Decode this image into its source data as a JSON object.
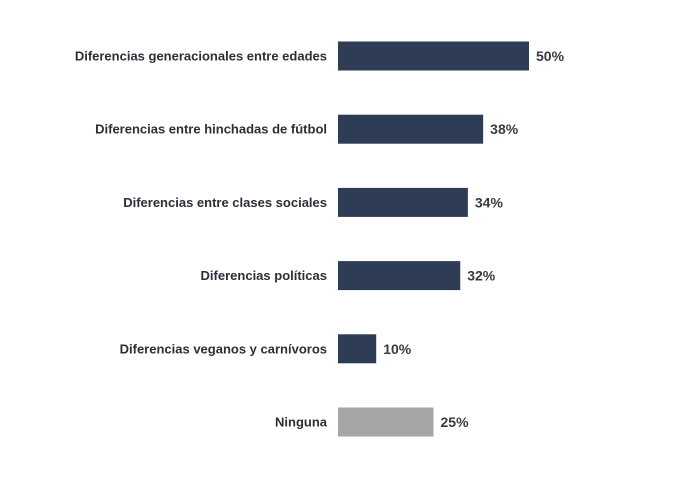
{
  "chart_data": {
    "type": "bar",
    "orientation": "horizontal",
    "categories": [
      "Diferencias generacionales entre edades",
      "Diferencias entre hinchadas de fútbol",
      "Diferencias entre clases sociales",
      "Diferencias políticas",
      "Diferencias veganos y carnívoros",
      "Ninguna"
    ],
    "values": [
      50,
      38,
      34,
      32,
      10,
      25
    ],
    "value_labels": [
      "50%",
      "38%",
      "34%",
      "32%",
      "10%",
      "25%"
    ],
    "unit": "%",
    "xlim": [
      0,
      100
    ],
    "grid": false,
    "legend": "none",
    "colors": [
      "#2e3c55",
      "#2e3c55",
      "#2e3c55",
      "#2e3c55",
      "#2e3c55",
      "#a6a6a6"
    ]
  }
}
